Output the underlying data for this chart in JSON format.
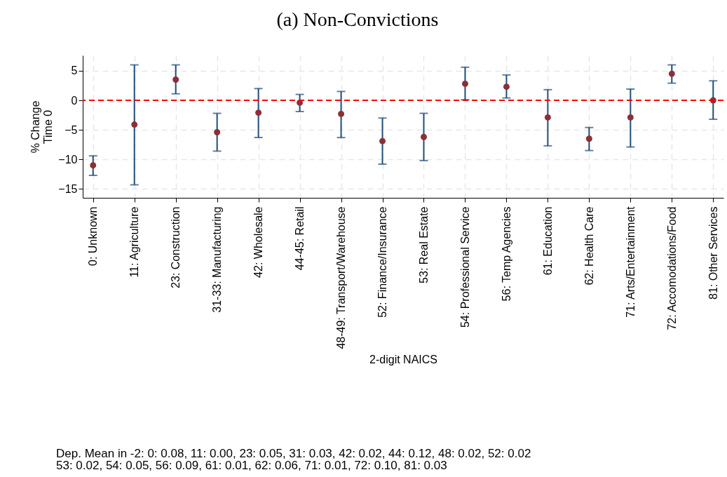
{
  "chart_data": {
    "type": "scatter",
    "title": "(a) Non-Convictions",
    "xlabel": "2-digit NAICS",
    "ylabel": "% Change\nTime 0",
    "categories": [
      "0: Unknown",
      "11: Agriculture",
      "23: Construction",
      "31-33: Manufacturing",
      "42: Wholesale",
      "44-45: Retail",
      "48-49: Transport/Warehouse",
      "52: Finance/Insurance",
      "53: Real Estate",
      "54: Professional Service",
      "56: Temp Agencies",
      "61: Education",
      "62: Health Care",
      "71: Arts/Entertainment",
      "72: Accomodations/Food",
      "81: Other Services"
    ],
    "series": [
      {
        "color": "#8b3036",
        "values": [
          -11.0,
          -4.1,
          3.5,
          -5.4,
          -2.1,
          -0.4,
          -2.3,
          -6.9,
          -6.2,
          2.8,
          2.3,
          -2.9,
          -6.5,
          -2.9,
          4.5,
          0.0
        ],
        "errors": [
          [
            -12.7,
            -9.4
          ],
          [
            -14.3,
            6.0
          ],
          [
            1.1,
            6.0
          ],
          [
            -8.6,
            -2.2
          ],
          [
            -6.3,
            2.0
          ],
          [
            -1.9,
            1.0
          ],
          [
            -6.3,
            1.5
          ],
          [
            -10.8,
            -3.0
          ],
          [
            -10.2,
            -2.2
          ],
          [
            0.1,
            5.6
          ],
          [
            0.4,
            4.3
          ],
          [
            -7.7,
            1.8
          ],
          [
            -8.5,
            -4.6
          ],
          [
            -7.9,
            1.9
          ],
          [
            2.9,
            6.0
          ],
          [
            -3.2,
            3.3
          ]
        ]
      }
    ],
    "ylim": [
      -16.5,
      7.6
    ],
    "yticks": [
      -15,
      -10,
      -5,
      0,
      5
    ],
    "grid": true,
    "marker": "circle",
    "ref_lines": [
      {
        "axis": "y",
        "value": 0,
        "color": "#ff0000",
        "line_style": "dashed"
      }
    ],
    "annotations": [
      "Dep. Mean in -2: 0: 0.08, 11: 0.00, 23: 0.05, 31: 0.03, 42: 0.02, 44: 0.12, 48: 0.02, 52: 0.02",
      "53: 0.02, 54: 0.05, 56: 0.09, 61: 0.01, 62: 0.06, 71: 0.01, 72: 0.10, 81: 0.03"
    ]
  }
}
